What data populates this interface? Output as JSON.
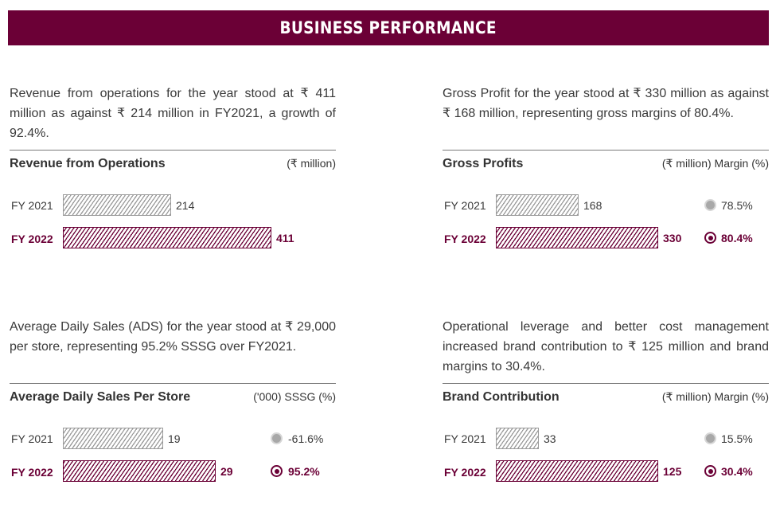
{
  "header": {
    "title": "BUSINESS PERFORMANCE"
  },
  "colors": {
    "brand": "#6b0036",
    "muted": "#9a9a9a"
  },
  "panels": {
    "revenue": {
      "description": "Revenue from operations for the year stood at ₹ 411 million as against ₹ 214 million in FY2021, a growth of 92.4%.",
      "title": "Revenue from Operations",
      "unit": "(₹ million)"
    },
    "gross": {
      "description": "Gross Profit for the year stood at ₹ 330 million as against ₹ 168 million, representing gross margins of 80.4%.",
      "title": "Gross Profits",
      "unit": "(₹ million) Margin (%)"
    },
    "ads": {
      "description": "Average Daily Sales (ADS) for the year stood at ₹ 29,000 per store, representing 95.2% SSSG over FY2021.",
      "title": "Average Daily Sales Per Store",
      "unit": "('000) SSSG (%)"
    },
    "brand": {
      "description": "Operational leverage and better cost management increased brand contribution to ₹ 125 million and brand margins to 30.4%.",
      "title": "Brand Contribution",
      "unit": "(₹ million) Margin (%)"
    }
  },
  "chart_data": [
    {
      "type": "bar",
      "title": "Revenue from Operations",
      "ylabel": "(₹ million)",
      "categories": [
        "FY 2021",
        "FY 2022"
      ],
      "values": [
        214,
        411
      ],
      "value_labels": [
        "214",
        "411"
      ]
    },
    {
      "type": "bar",
      "title": "Gross Profits",
      "ylabel": "(₹ million) Margin (%)",
      "categories": [
        "FY 2021",
        "FY 2022"
      ],
      "values": [
        168,
        330
      ],
      "value_labels": [
        "168",
        "330"
      ],
      "secondary": {
        "name": "Margin (%)",
        "labels": [
          "78.5%",
          "80.4%"
        ],
        "values": [
          78.5,
          80.4
        ]
      }
    },
    {
      "type": "bar",
      "title": "Average Daily Sales Per Store",
      "ylabel": "('000) SSSG (%)",
      "categories": [
        "FY 2021",
        "FY 2022"
      ],
      "values": [
        19,
        29
      ],
      "value_labels": [
        "19",
        "29"
      ],
      "secondary": {
        "name": "SSSG (%)",
        "labels": [
          "-61.6%",
          "95.2%"
        ],
        "values": [
          -61.6,
          95.2
        ]
      }
    },
    {
      "type": "bar",
      "title": "Brand Contribution",
      "ylabel": "(₹ million) Margin (%)",
      "categories": [
        "FY 2021",
        "FY 2022"
      ],
      "values": [
        33,
        125
      ],
      "value_labels": [
        "33",
        "125"
      ],
      "secondary": {
        "name": "Margin (%)",
        "labels": [
          "15.5%",
          "30.4%"
        ],
        "values": [
          15.5,
          30.4
        ]
      }
    }
  ]
}
